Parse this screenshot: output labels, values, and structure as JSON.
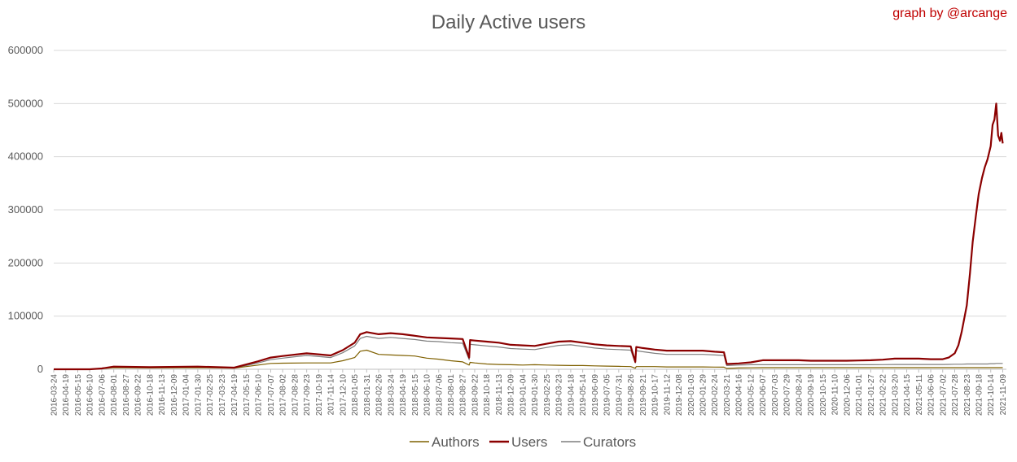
{
  "title": "Daily Active users",
  "credit": "graph by @arcange",
  "colors": {
    "authors": "#7f6000",
    "users": "#8b0000",
    "curators": "#7f7f7f",
    "grid": "#d9d9d9",
    "axis": "#bfbfbf",
    "text": "#595959"
  },
  "chart_data": {
    "type": "line",
    "title": "Daily Active users",
    "xlabel": "",
    "ylabel": "",
    "ylim": [
      0,
      600000
    ],
    "yticks": [
      "0",
      "100000",
      "200000",
      "300000",
      "400000",
      "500000",
      "600000"
    ],
    "xticks": [
      "2016-03-24",
      "2016-04-19",
      "2016-05-15",
      "2016-06-10",
      "2016-07-06",
      "2016-08-01",
      "2016-08-27",
      "2016-09-22",
      "2016-10-18",
      "2016-11-13",
      "2016-12-09",
      "2017-01-04",
      "2017-01-30",
      "2017-02-25",
      "2017-03-23",
      "2017-04-19",
      "2017-05-15",
      "2017-06-10",
      "2017-07-07",
      "2017-08-02",
      "2017-08-28",
      "2017-09-23",
      "2017-10-19",
      "2017-11-14",
      "2017-12-10",
      "2018-01-05",
      "2018-01-31",
      "2018-02-26",
      "2018-03-24",
      "2018-04-19",
      "2018-05-15",
      "2018-06-10",
      "2018-07-06",
      "2018-08-01",
      "2018-08-27",
      "2018-09-22",
      "2018-10-18",
      "2018-11-13",
      "2018-12-09",
      "2019-01-04",
      "2019-01-30",
      "2019-02-25",
      "2019-03-23",
      "2019-04-18",
      "2019-05-14",
      "2019-06-09",
      "2019-07-05",
      "2019-07-31",
      "2019-08-26",
      "2019-09-21",
      "2019-10-17",
      "2019-11-12",
      "2019-12-08",
      "2020-01-03",
      "2020-01-29",
      "2020-02-24",
      "2020-03-21",
      "2020-04-16",
      "2020-05-12",
      "2020-06-07",
      "2020-07-03",
      "2020-07-29",
      "2020-08-24",
      "2020-09-19",
      "2020-10-15",
      "2020-11-10",
      "2020-12-06",
      "2021-01-01",
      "2021-01-27",
      "2021-02-22",
      "2021-03-20",
      "2021-04-15",
      "2021-05-11",
      "2021-06-06",
      "2021-07-02",
      "2021-07-28",
      "2021-08-23",
      "2021-09-18",
      "2021-10-14",
      "2021-11-09"
    ],
    "legend_position": "bottom",
    "grid": true,
    "x": [
      "2016-03-24",
      "2016-06-10",
      "2016-07-06",
      "2016-08-01",
      "2016-10-18",
      "2017-01-30",
      "2017-04-19",
      "2017-05-15",
      "2017-06-10",
      "2017-07-07",
      "2017-08-02",
      "2017-09-23",
      "2017-11-14",
      "2017-12-10",
      "2018-01-05",
      "2018-01-17",
      "2018-01-31",
      "2018-02-26",
      "2018-03-24",
      "2018-04-19",
      "2018-05-15",
      "2018-06-10",
      "2018-07-06",
      "2018-08-01",
      "2018-08-27",
      "2018-09-10",
      "2018-09-12",
      "2018-09-22",
      "2018-10-18",
      "2018-11-13",
      "2018-12-09",
      "2019-01-04",
      "2019-01-30",
      "2019-02-25",
      "2019-03-23",
      "2019-04-18",
      "2019-05-14",
      "2019-06-09",
      "2019-07-05",
      "2019-07-31",
      "2019-08-26",
      "2019-09-05",
      "2019-09-07",
      "2019-09-21",
      "2019-10-17",
      "2019-11-12",
      "2019-12-08",
      "2020-01-03",
      "2020-01-29",
      "2020-02-24",
      "2020-03-15",
      "2020-03-21",
      "2020-04-16",
      "2020-05-12",
      "2020-06-07",
      "2020-07-03",
      "2020-07-29",
      "2020-08-24",
      "2020-09-19",
      "2020-10-15",
      "2020-11-10",
      "2020-12-06",
      "2021-01-01",
      "2021-01-27",
      "2021-02-22",
      "2021-03-20",
      "2021-04-15",
      "2021-05-11",
      "2021-06-06",
      "2021-07-02",
      "2021-07-15",
      "2021-07-28",
      "2021-08-05",
      "2021-08-12",
      "2021-08-23",
      "2021-08-30",
      "2021-09-05",
      "2021-09-12",
      "2021-09-18",
      "2021-09-25",
      "2021-10-01",
      "2021-10-07",
      "2021-10-14",
      "2021-10-18",
      "2021-10-22",
      "2021-10-26",
      "2021-10-30",
      "2021-11-03",
      "2021-11-06",
      "2021-11-09"
    ],
    "series": [
      {
        "name": "Authors",
        "color": "#7f6000",
        "values": [
          0,
          0,
          1000,
          3000,
          2500,
          3000,
          2000,
          5000,
          8000,
          11000,
          11500,
          12000,
          12000,
          16000,
          22000,
          34000,
          36000,
          28000,
          27000,
          26000,
          25000,
          21000,
          19000,
          16000,
          14000,
          8000,
          13000,
          12000,
          10000,
          9000,
          8500,
          8000,
          8500,
          8000,
          7500,
          7000,
          7000,
          6500,
          6000,
          5500,
          5000,
          2000,
          5000,
          5000,
          5000,
          4500,
          4500,
          4500,
          4500,
          4200,
          4000,
          1500,
          2500,
          2800,
          3000,
          3000,
          3000,
          3000,
          3000,
          3000,
          3000,
          3000,
          3000,
          3000,
          3000,
          3000,
          3000,
          3000,
          3000,
          3000,
          3000,
          3000,
          3000,
          3000,
          3000,
          3000,
          3000,
          3000,
          3000,
          3000,
          3000,
          3000,
          3000,
          3000,
          3000,
          3000,
          3000,
          3000,
          3000,
          3000
        ]
      },
      {
        "name": "Users",
        "color": "#8b0000",
        "values": [
          0,
          0,
          1500,
          5000,
          4000,
          5000,
          3000,
          9000,
          15000,
          22000,
          25000,
          30000,
          26000,
          36000,
          50000,
          66000,
          70000,
          66000,
          68000,
          66000,
          63000,
          60000,
          59000,
          58000,
          57000,
          22000,
          55000,
          54000,
          52000,
          50000,
          46000,
          45000,
          44000,
          48000,
          52000,
          53000,
          50000,
          47000,
          45000,
          44000,
          43000,
          14000,
          42000,
          40000,
          37000,
          35000,
          35000,
          35000,
          35000,
          33000,
          32000,
          10000,
          11000,
          13000,
          17000,
          17000,
          17000,
          17000,
          16000,
          16000,
          16000,
          16000,
          16500,
          17000,
          18000,
          20000,
          20000,
          20000,
          19000,
          19000,
          22000,
          30000,
          45000,
          70000,
          120000,
          180000,
          240000,
          290000,
          330000,
          360000,
          380000,
          395000,
          420000,
          460000,
          470000,
          500000,
          440000,
          430000,
          445000,
          425000
        ]
      },
      {
        "name": "Curators",
        "color": "#7f7f7f",
        "values": [
          0,
          0,
          1000,
          4000,
          3500,
          4000,
          2500,
          7000,
          12000,
          18000,
          21000,
          26000,
          22000,
          31000,
          44000,
          58000,
          62000,
          58000,
          60000,
          58000,
          56000,
          53000,
          52000,
          50000,
          49000,
          18000,
          47000,
          46000,
          44000,
          42000,
          39000,
          38000,
          37000,
          41000,
          45000,
          46000,
          43000,
          40000,
          38000,
          37000,
          36000,
          12000,
          35000,
          33000,
          30000,
          28000,
          28000,
          28000,
          28000,
          27000,
          26000,
          7000,
          8000,
          8500,
          8500,
          8500,
          8500,
          8500,
          8500,
          8500,
          8500,
          8500,
          8500,
          8500,
          8800,
          9000,
          9000,
          9000,
          9000,
          9000,
          9200,
          9500,
          9500,
          9500,
          10000,
          10000,
          10000,
          10000,
          10000,
          10000,
          10000,
          10000,
          10500,
          10500,
          10500,
          11000,
          11000,
          11000,
          11000,
          11000
        ]
      }
    ]
  }
}
